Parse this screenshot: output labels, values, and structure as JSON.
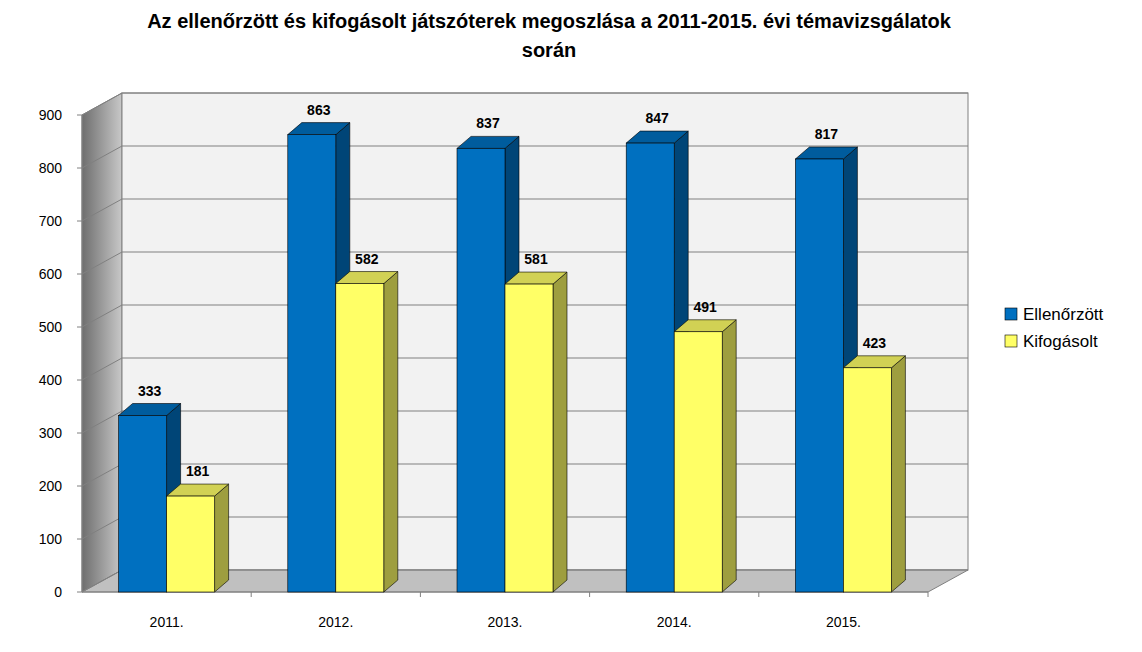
{
  "chart_data": {
    "type": "bar",
    "title": "Az ellenőrzött és kifogásolt játszóterek megoszlása a 2011-2015. évi témavizsgálatok során",
    "categories": [
      "2011.",
      "2012.",
      "2013.",
      "2014.",
      "2015."
    ],
    "series": [
      {
        "name": "Ellenőrzött",
        "color": "#0070c0",
        "values": [
          333,
          863,
          837,
          847,
          817
        ]
      },
      {
        "name": "Kifogásolt",
        "color": "#ffff66",
        "values": [
          181,
          582,
          581,
          491,
          423
        ]
      }
    ],
    "ylim": [
      0,
      900
    ],
    "yticks": [
      0,
      100,
      200,
      300,
      400,
      500,
      600,
      700,
      800,
      900
    ],
    "grid": true,
    "legend": "right",
    "data_labels": true
  }
}
